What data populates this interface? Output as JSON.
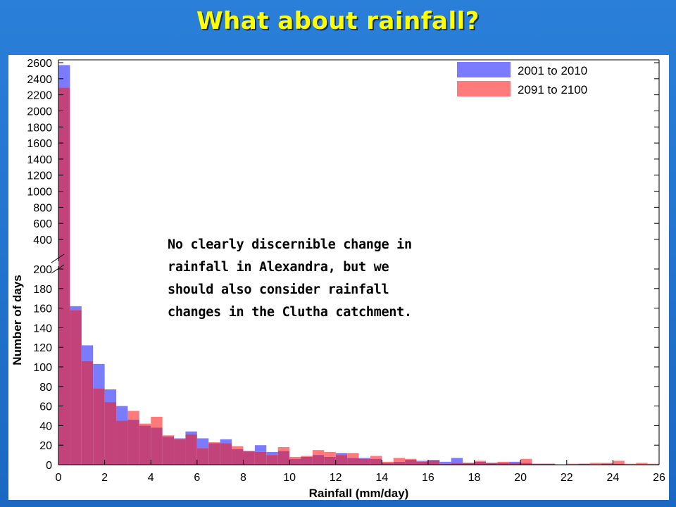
{
  "slide": {
    "title": "What about rainfall?",
    "annotation_lines": [
      "No clearly discernible change in",
      "rainfall in Alexandra, but we",
      "should also consider rainfall",
      "changes in the Clutha catchment."
    ]
  },
  "colors": {
    "background": "#1E6FC8",
    "title": "#FFFF00",
    "series_2001_2010": "#7B7BFF",
    "series_2091_2100": "#FF7A7A",
    "overlap": "#C2427A"
  },
  "chart_data": {
    "type": "bar",
    "subtype": "histogram",
    "xlabel": "Rainfall (mm/day)",
    "ylabel": "Number of days",
    "xlim": [
      0,
      26
    ],
    "bin_width": 0.5,
    "x_ticks": [
      0,
      2,
      4,
      6,
      8,
      10,
      12,
      14,
      16,
      18,
      20,
      22,
      24,
      26
    ],
    "y_axis_broken": true,
    "y_ticks_lower": [
      0,
      20,
      40,
      60,
      80,
      100,
      120,
      140,
      160,
      180,
      200
    ],
    "y_ticks_upper": [
      400,
      600,
      800,
      1000,
      1200,
      1400,
      1600,
      1800,
      2000,
      2200,
      2400,
      2600
    ],
    "legend_position": "top-right",
    "bin_starts": [
      0,
      0.5,
      1,
      1.5,
      2,
      2.5,
      3,
      3.5,
      4,
      4.5,
      5,
      5.5,
      6,
      6.5,
      7,
      7.5,
      8,
      8.5,
      9,
      9.5,
      10,
      10.5,
      11,
      11.5,
      12,
      12.5,
      13,
      13.5,
      14,
      14.5,
      15,
      15.5,
      16,
      16.5,
      17,
      17.5,
      18,
      18.5,
      19,
      19.5,
      20,
      20.5,
      21,
      21.5,
      22,
      22.5,
      23,
      23.5,
      24,
      24.5,
      25,
      25.5
    ],
    "series": [
      {
        "name": "2001 to 2010",
        "values": [
          2570,
          162,
          122,
          103,
          77,
          60,
          46,
          40,
          38,
          29,
          27,
          34,
          27,
          22,
          26,
          16,
          14,
          20,
          13,
          14,
          6,
          8,
          10,
          8,
          12,
          7,
          7,
          6,
          2,
          3,
          5,
          4,
          5,
          3,
          7,
          2,
          3,
          2,
          2,
          3,
          2,
          1,
          1,
          0,
          0,
          1,
          0,
          1,
          1,
          0,
          0,
          0
        ]
      },
      {
        "name": "2091 to 2100",
        "values": [
          2290,
          158,
          106,
          78,
          64,
          45,
          55,
          42,
          49,
          30,
          26,
          31,
          17,
          23,
          22,
          19,
          14,
          13,
          10,
          18,
          8,
          9,
          15,
          13,
          10,
          12,
          6,
          9,
          3,
          7,
          6,
          3,
          4,
          1,
          2,
          2,
          4,
          2,
          3,
          2,
          6,
          1,
          1,
          0,
          1,
          1,
          2,
          2,
          4,
          1,
          2,
          1
        ]
      }
    ]
  }
}
